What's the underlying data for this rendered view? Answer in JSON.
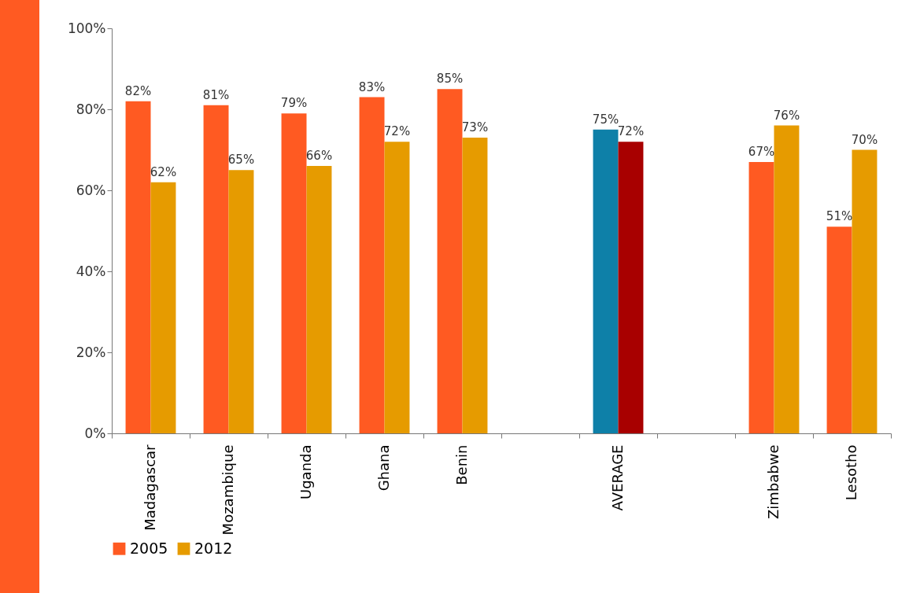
{
  "chart_data": {
    "type": "bar",
    "categories": [
      "Madagascar",
      "Mozambique",
      "Uganda",
      "Ghana",
      "Benin",
      null,
      "AVERAGE",
      null,
      "Zimbabwe",
      "Lesotho"
    ],
    "series": [
      {
        "name": "2005",
        "color": "#ff5a22",
        "colors": [
          "#ff5a22",
          "#ff5a22",
          "#ff5a22",
          "#ff5a22",
          "#ff5a22",
          null,
          "#0e80a8",
          null,
          "#ff5a22",
          "#ff5a22"
        ],
        "values": [
          82,
          81,
          79,
          83,
          85,
          null,
          75,
          null,
          67,
          51
        ],
        "value_labels": [
          "82%",
          "81%",
          "79%",
          "83%",
          "85%",
          null,
          "75%",
          null,
          "67%",
          "51%"
        ]
      },
      {
        "name": "2012",
        "color": "#e69b00",
        "colors": [
          "#e69b00",
          "#e69b00",
          "#e69b00",
          "#e69b00",
          "#e69b00",
          null,
          "#a80000",
          null,
          "#e69b00",
          "#e69b00"
        ],
        "values": [
          62,
          65,
          66,
          72,
          73,
          null,
          72,
          null,
          76,
          70
        ],
        "value_labels": [
          "62%",
          "65%",
          "66%",
          "72%",
          "73%",
          null,
          "72%",
          null,
          "76%",
          "70%"
        ]
      }
    ],
    "ylim": [
      0,
      100
    ],
    "yticks": [
      {
        "value": 0,
        "label": "0%"
      },
      {
        "value": 20,
        "label": "20%"
      },
      {
        "value": 40,
        "label": "40%"
      },
      {
        "value": 60,
        "label": "60%"
      },
      {
        "value": 80,
        "label": "80%"
      },
      {
        "value": 100,
        "label": "100%"
      }
    ],
    "grid": false,
    "legend": "bottom"
  }
}
